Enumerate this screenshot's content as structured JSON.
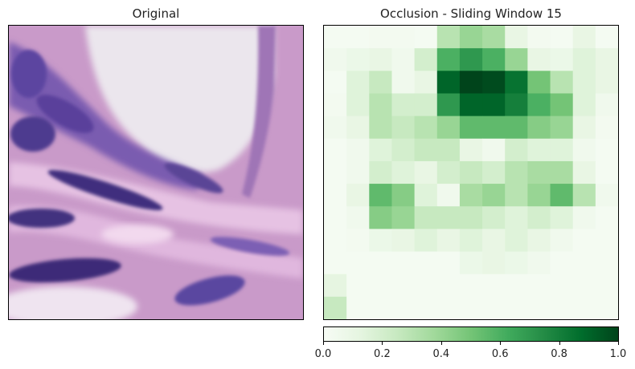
{
  "panels": {
    "left_title": "Original",
    "right_title": "Occlusion - Sliding Window 15"
  },
  "colors": {
    "cmap": "Greens",
    "low": "#f7fcf5",
    "high": "#00441b",
    "tissue_purple": "#5b3f96",
    "tissue_pink": "#d7a6d8",
    "lumen_white": "#ece8ee"
  },
  "chart_data": {
    "type": "heatmap",
    "title": "Occlusion - Sliding Window 15",
    "colormap": "Greens",
    "colorbar": {
      "range": [
        0,
        1
      ],
      "ticks": [
        "0.0",
        "0.2",
        "0.4",
        "0.6",
        "0.8",
        "1.0"
      ]
    },
    "grid_rows": 13,
    "grid_cols": 13,
    "values": [
      [
        0.02,
        0.02,
        0.03,
        0.03,
        0.02,
        0.3,
        0.4,
        0.35,
        0.1,
        0.03,
        0.02,
        0.1,
        0.02
      ],
      [
        0.05,
        0.08,
        0.1,
        0.05,
        0.2,
        0.6,
        0.7,
        0.6,
        0.4,
        0.1,
        0.08,
        0.15,
        0.1
      ],
      [
        0.02,
        0.15,
        0.25,
        0.05,
        0.1,
        0.9,
        1.0,
        0.98,
        0.85,
        0.5,
        0.3,
        0.15,
        0.1
      ],
      [
        0.03,
        0.15,
        0.3,
        0.2,
        0.2,
        0.7,
        0.9,
        0.9,
        0.8,
        0.6,
        0.5,
        0.15,
        0.05
      ],
      [
        0.05,
        0.1,
        0.3,
        0.25,
        0.3,
        0.4,
        0.55,
        0.55,
        0.55,
        0.45,
        0.4,
        0.1,
        0.03
      ],
      [
        0.02,
        0.05,
        0.15,
        0.2,
        0.25,
        0.25,
        0.1,
        0.05,
        0.2,
        0.15,
        0.15,
        0.05,
        0.02
      ],
      [
        0.02,
        0.05,
        0.2,
        0.15,
        0.1,
        0.2,
        0.25,
        0.2,
        0.3,
        0.35,
        0.35,
        0.1,
        0.02
      ],
      [
        0.02,
        0.1,
        0.55,
        0.45,
        0.15,
        0.05,
        0.35,
        0.4,
        0.3,
        0.4,
        0.55,
        0.3,
        0.05
      ],
      [
        0.02,
        0.05,
        0.45,
        0.4,
        0.25,
        0.25,
        0.25,
        0.2,
        0.15,
        0.2,
        0.15,
        0.05,
        0.02
      ],
      [
        0.02,
        0.03,
        0.08,
        0.1,
        0.15,
        0.1,
        0.15,
        0.1,
        0.15,
        0.1,
        0.05,
        0.02,
        0.02
      ],
      [
        0.02,
        0.02,
        0.02,
        0.02,
        0.02,
        0.02,
        0.08,
        0.1,
        0.08,
        0.05,
        0.02,
        0.02,
        0.02
      ],
      [
        0.12,
        0.02,
        0.02,
        0.02,
        0.02,
        0.02,
        0.02,
        0.02,
        0.02,
        0.02,
        0.02,
        0.02,
        0.02
      ],
      [
        0.25,
        0.02,
        0.02,
        0.02,
        0.02,
        0.02,
        0.02,
        0.02,
        0.02,
        0.02,
        0.02,
        0.02,
        0.02
      ]
    ]
  }
}
